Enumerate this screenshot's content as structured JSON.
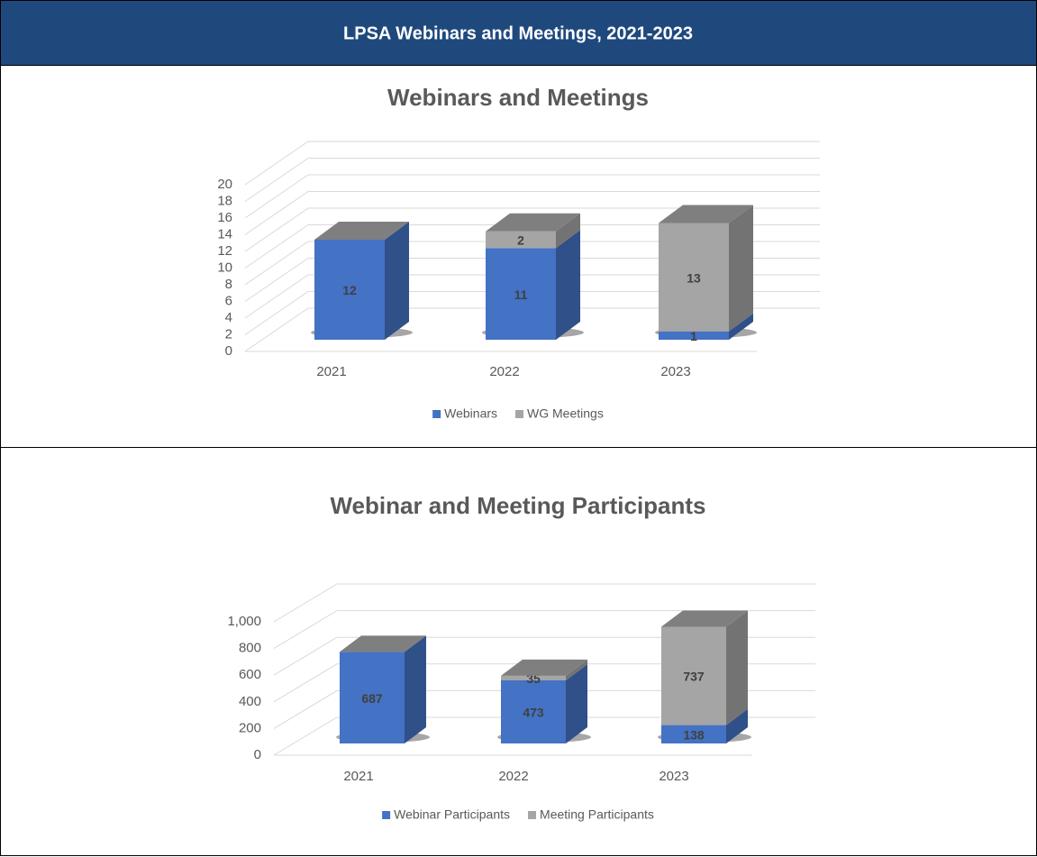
{
  "header": {
    "title": "LPSA Webinars and Meetings, 2021-2023"
  },
  "chart_data": [
    {
      "type": "bar3d-stacked",
      "title": "Webinars and Meetings",
      "categories": [
        "2021",
        "2022",
        "2023"
      ],
      "series": [
        {
          "name": "Webinars",
          "color": "#4472c4",
          "values": [
            12,
            11,
            1
          ]
        },
        {
          "name": "WG Meetings",
          "color": "#a5a5a5",
          "values": [
            null,
            2,
            13
          ]
        }
      ],
      "ylim": [
        0,
        20
      ],
      "yticks": [
        0,
        2,
        4,
        6,
        8,
        10,
        12,
        14,
        16,
        18,
        20
      ],
      "grid": true,
      "legend": "bottom"
    },
    {
      "type": "bar3d-stacked",
      "title": "Webinar and Meeting Participants",
      "categories": [
        "2021",
        "2022",
        "2023"
      ],
      "series": [
        {
          "name": "Webinar Participants",
          "color": "#4472c4",
          "values": [
            687,
            473,
            138
          ]
        },
        {
          "name": "Meeting Participants",
          "color": "#a5a5a5",
          "values": [
            null,
            35,
            737
          ]
        }
      ],
      "ylim": [
        0,
        1000
      ],
      "yticks": [
        0,
        200,
        400,
        600,
        800,
        {
          "value": 1000,
          "label": "1,000"
        }
      ],
      "grid": true,
      "legend": "bottom"
    }
  ]
}
